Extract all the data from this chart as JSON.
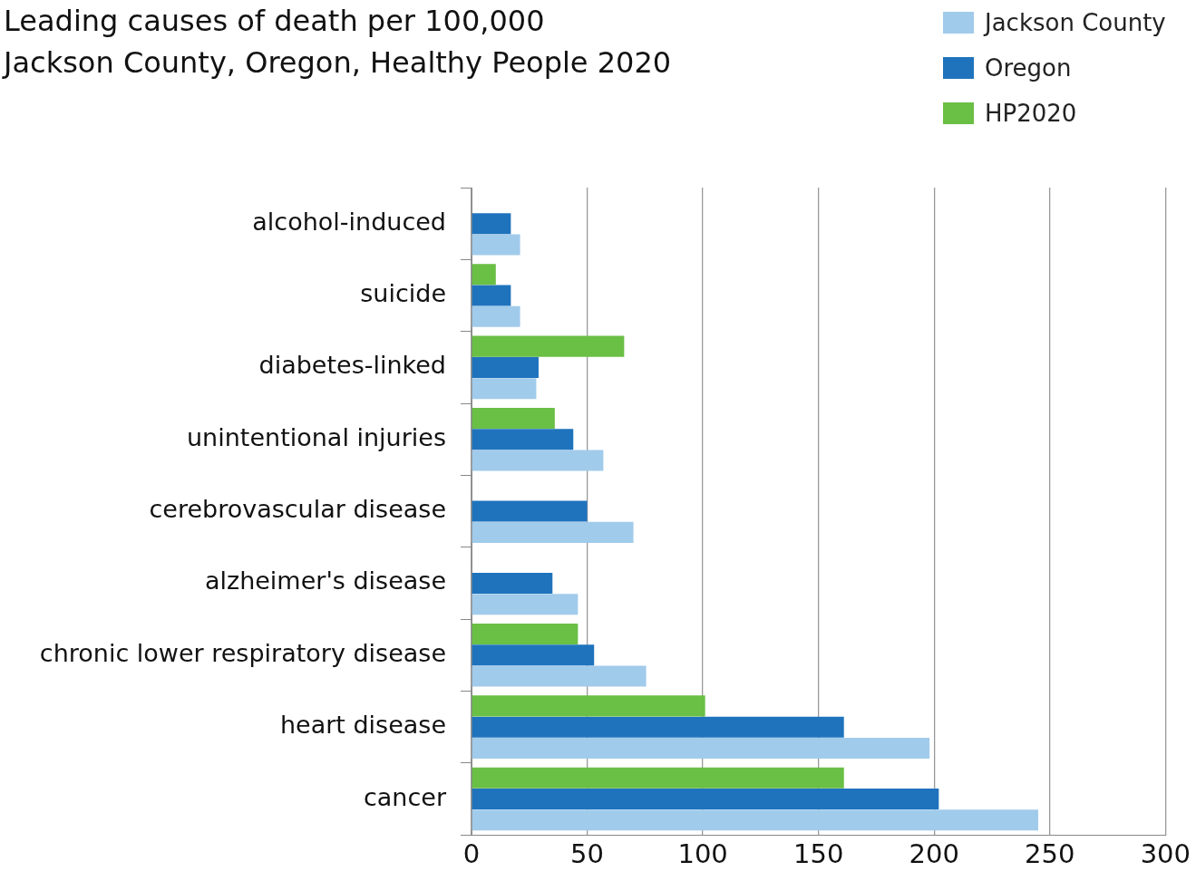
{
  "chart_data": {
    "type": "bar",
    "orientation": "horizontal",
    "title": "Leading causes of death per 100,000\nJackson County, Oregon, Healthy People 2020",
    "categories": [
      "alcohol-induced",
      "suicide",
      "diabetes-linked",
      "unintentional injuries",
      "cerebrovascular disease",
      "alzheimer's disease",
      "chronic lower respiratory disease",
      "heart disease",
      "cancer"
    ],
    "series": [
      {
        "name": "HP2020",
        "color": "#6abf45",
        "values": [
          null,
          10.5,
          66,
          36,
          null,
          null,
          46,
          101,
          161
        ]
      },
      {
        "name": "Oregon",
        "color": "#1f73bd",
        "values": [
          17,
          17,
          29,
          44,
          50,
          35,
          53,
          161,
          202
        ]
      },
      {
        "name": "Jackson County",
        "color": "#a1cbeb",
        "values": [
          21,
          21,
          28,
          57,
          70,
          46,
          75.5,
          198,
          245
        ]
      }
    ],
    "xlim": [
      0,
      300
    ],
    "xticks": [
      0,
      50,
      100,
      150,
      200,
      250,
      300
    ],
    "grid": "x",
    "legend": "top right"
  }
}
